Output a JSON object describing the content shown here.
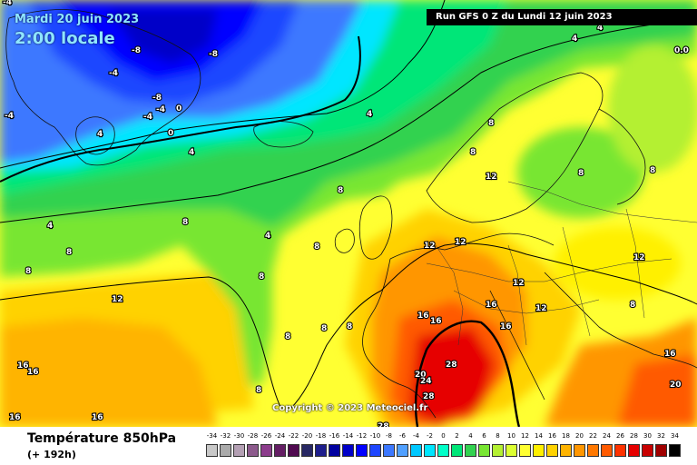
{
  "overlay": {
    "date": "Mardi 20 juin 2023",
    "time": "2:00 locale",
    "run": "Run GFS 0 Z du Lundi 12 juin 2023",
    "copyright": "Copyright © 2023 Meteociel.fr"
  },
  "legend": {
    "title": "Température 850hPa",
    "lead_time": "(+ 192h)",
    "ticks": [
      "-34",
      "-32",
      "-30",
      "-28",
      "-26",
      "-24",
      "-22",
      "-20",
      "-18",
      "-16",
      "-14",
      "-12",
      "-10",
      "-8",
      "-6",
      "-4",
      "-2",
      "0",
      "2",
      "4",
      "6",
      "8",
      "10",
      "12",
      "14",
      "16",
      "18",
      "20",
      "22",
      "24",
      "26",
      "28",
      "30",
      "32",
      "34"
    ],
    "colors": [
      "#c8c8c8",
      "#aaaaaa",
      "#b4a0b4",
      "#8c5a8c",
      "#8c3c8c",
      "#641e64",
      "#500a50",
      "#282864",
      "#1e1e8c",
      "#0000a0",
      "#0000c8",
      "#0000ff",
      "#1e46ff",
      "#3c78ff",
      "#50a0ff",
      "#00c8ff",
      "#00e6ff",
      "#00ffc8",
      "#00e678",
      "#32d250",
      "#78e632",
      "#b4f032",
      "#dcff32",
      "#ffff32",
      "#fff000",
      "#ffd200",
      "#ffb400",
      "#ff9600",
      "#ff7800",
      "#ff5a00",
      "#ff3200",
      "#e60000",
      "#c80000",
      "#a00000",
      "#000000"
    ]
  },
  "map_labels": [
    "-8",
    "-8",
    "-8",
    "-4",
    "-4",
    "-4",
    "-4",
    "0",
    "0",
    "4",
    "4",
    "4",
    "4",
    "4",
    "4",
    "8",
    "8",
    "8",
    "8",
    "8",
    "8",
    "8",
    "8",
    "8",
    "8",
    "8",
    "8",
    "8",
    "8",
    "12",
    "12",
    "12",
    "12",
    "12",
    "12",
    "12",
    "16",
    "16",
    "16",
    "16",
    "16",
    "16",
    "16",
    "16",
    "16",
    "20",
    "20",
    "24",
    "28",
    "28",
    "28",
    "0.0",
    "4",
    "-4",
    "8"
  ]
}
